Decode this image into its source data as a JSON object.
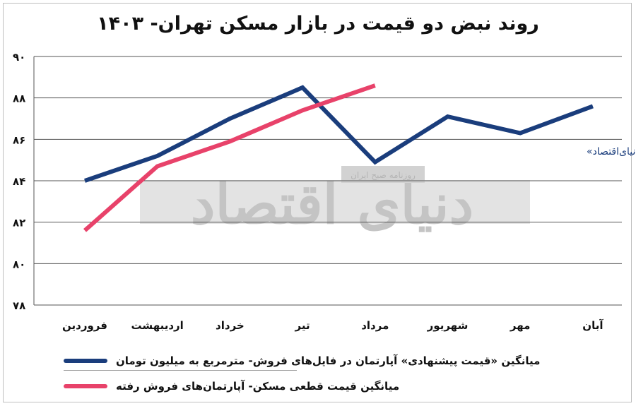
{
  "chart_data": {
    "type": "line",
    "title": "روند نبض دو قیمت در بازار مسکن تهران- ۱۴۰۳",
    "categories": [
      "فروردین",
      "اردیبهشت",
      "خرداد",
      "تیر",
      "مرداد",
      "شهریور",
      "مهر",
      "آبان"
    ],
    "ylim": [
      78,
      90
    ],
    "yticks": [
      78,
      80,
      82,
      84,
      86,
      88,
      90
    ],
    "grid": true,
    "series": [
      {
        "name": "میانگین «قیمت پیشنهادی» آپارتمان در فایل‌های فروش- مترمربع به میلیون تومان",
        "color": "#1a3d7c",
        "values": [
          84.0,
          85.2,
          87.0,
          88.5,
          84.9,
          87.1,
          86.3,
          87.6
        ]
      },
      {
        "name": "میانگین قیمت قطعی مسکن- آپارتمان‌های فروش رفته",
        "color": "#e8426a",
        "values": [
          81.6,
          84.7,
          85.9,
          87.4,
          88.6,
          null,
          null,
          null
        ]
      }
    ],
    "annotation": "شاخص مسکن «دنیای‌اقتصاد»",
    "legend_position": "bottom"
  },
  "watermark": {
    "brand": "دنیای اقتصاد",
    "subtitle": "روزنامه صبح ایران"
  }
}
